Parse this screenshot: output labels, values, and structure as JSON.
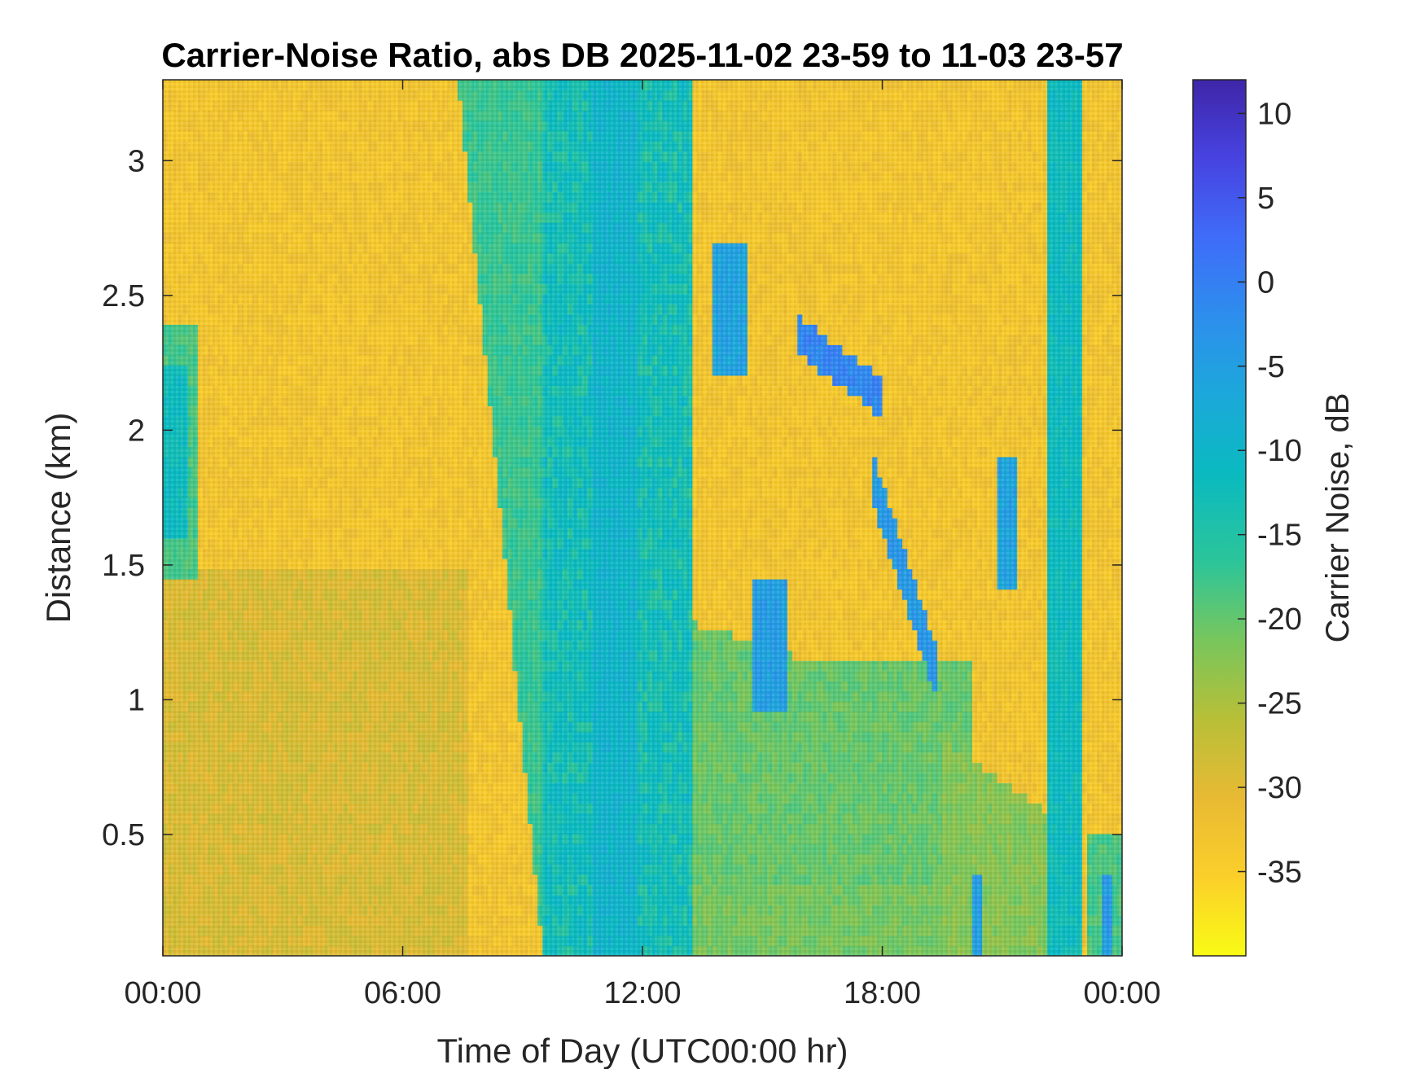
{
  "chart_data": {
    "type": "heatmap",
    "title": "Carrier-Noise Ratio, abs DB 2025-11-02 23-59 to 11-03 23-57",
    "xlabel": "Time of Day (UTC00:00 hr)",
    "ylabel": "Distance (km)",
    "colorbar_label": "Carrier Noise, dB",
    "xlim": [
      0,
      24
    ],
    "ylim": [
      0.05,
      3.3
    ],
    "clim": [
      -40,
      12
    ],
    "x_ticks": [
      0,
      6,
      12,
      18,
      24
    ],
    "x_tick_labels": [
      "00:00",
      "06:00",
      "12:00",
      "18:00",
      "00:00"
    ],
    "y_ticks": [
      0.5,
      1,
      1.5,
      2,
      2.5,
      3
    ],
    "y_tick_labels": [
      "0.5",
      "1",
      "1.5",
      "2",
      "2.5",
      "3"
    ],
    "colorbar_ticks": [
      10,
      5,
      0,
      -5,
      -10,
      -15,
      -20,
      -25,
      -30,
      -35
    ],
    "colorbar_tick_labels": [
      "10",
      "5",
      "0",
      "-5",
      "-10",
      "-15",
      "-20",
      "-25",
      "-30",
      "-35"
    ],
    "colormap": "parula",
    "colormap_stops": [
      "#3e26a8",
      "#4743e1",
      "#3f6cf9",
      "#2d8eed",
      "#1ca8da",
      "#0abac0",
      "#2cc59a",
      "#78c65c",
      "#b8bf37",
      "#e8ba34",
      "#fbcf2a",
      "#f9fb15"
    ],
    "features": [
      {
        "region": "0.0-7.5 h, 0.05-1.5 km",
        "value_db": -29
      },
      {
        "region": "0.0-7.5 h, 1.5-3.3 km",
        "value_db": -33
      },
      {
        "region": "0.0-0.9 h, 1.5-2.4 km",
        "value_db": -15
      },
      {
        "region": "7.5-9.5 h, 0.5-3.3 km (sloping band)",
        "value_db": -16
      },
      {
        "region": "9.5-13.3 h, 0.05-3.3 km",
        "value_db": -13
      },
      {
        "region": "13.3-20 h, 0.05-1.2 km",
        "value_db": -20
      },
      {
        "region": "15.8-18.0 h, 2.1-2.35 km",
        "value_db": -2
      },
      {
        "region": "18.0-20.0 h, 0.9-1.8 km",
        "value_db": -5
      },
      {
        "region": "22.1-22.9 h, 0.05-3.3 km",
        "value_db": -12
      },
      {
        "region": "13.3-24 h, 1.2-3.3 km",
        "value_db": -33
      }
    ]
  }
}
